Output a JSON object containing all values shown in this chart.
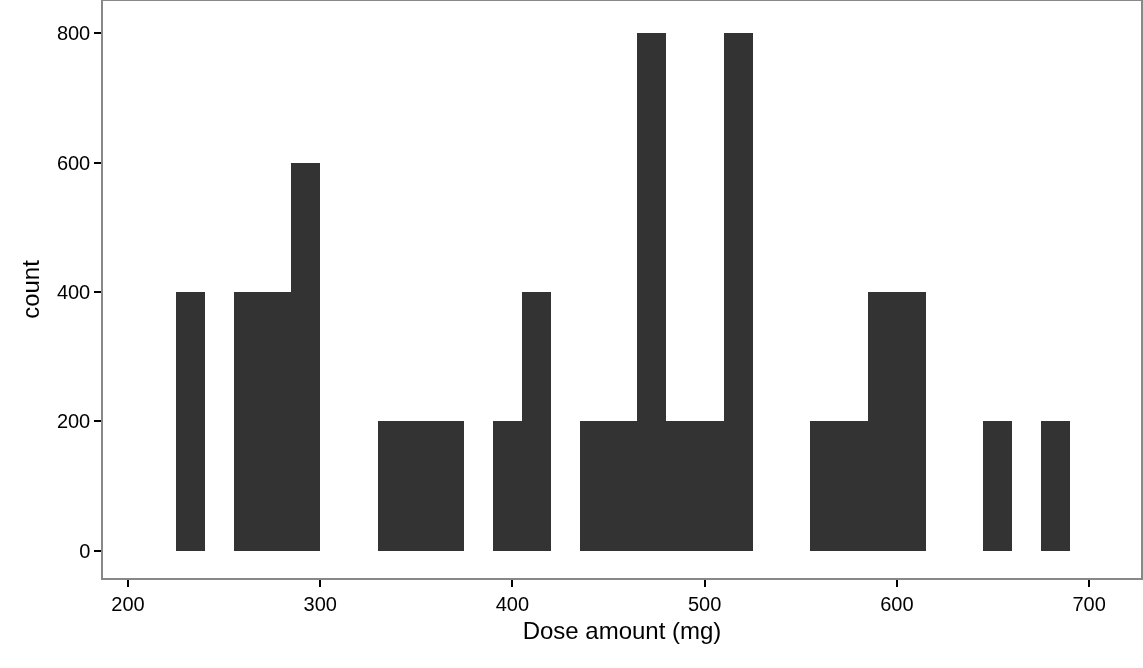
{
  "chart_data": {
    "type": "histogram",
    "xlabel": "Dose amount (mg)",
    "ylabel": "count",
    "color": "#333333",
    "bins": [
      225,
      240,
      255,
      270,
      285,
      300,
      315,
      330,
      345,
      360,
      375,
      390,
      405,
      420,
      435,
      450,
      465,
      480,
      495,
      510,
      525,
      540,
      555,
      570,
      585,
      600,
      615,
      630,
      645,
      660,
      675,
      690
    ],
    "values": [
      400,
      0,
      400,
      400,
      600,
      0,
      0,
      200,
      200,
      200,
      0,
      200,
      400,
      0,
      200,
      200,
      800,
      200,
      200,
      800,
      0,
      0,
      200,
      200,
      400,
      400,
      0,
      0,
      200,
      0,
      200
    ],
    "xlim": [
      187,
      727
    ],
    "xticks": [
      200,
      300,
      400,
      500,
      600,
      700
    ],
    "ylim": [
      -42,
      850
    ],
    "yticks": [
      0,
      200,
      400,
      600,
      800
    ],
    "grid": false
  }
}
